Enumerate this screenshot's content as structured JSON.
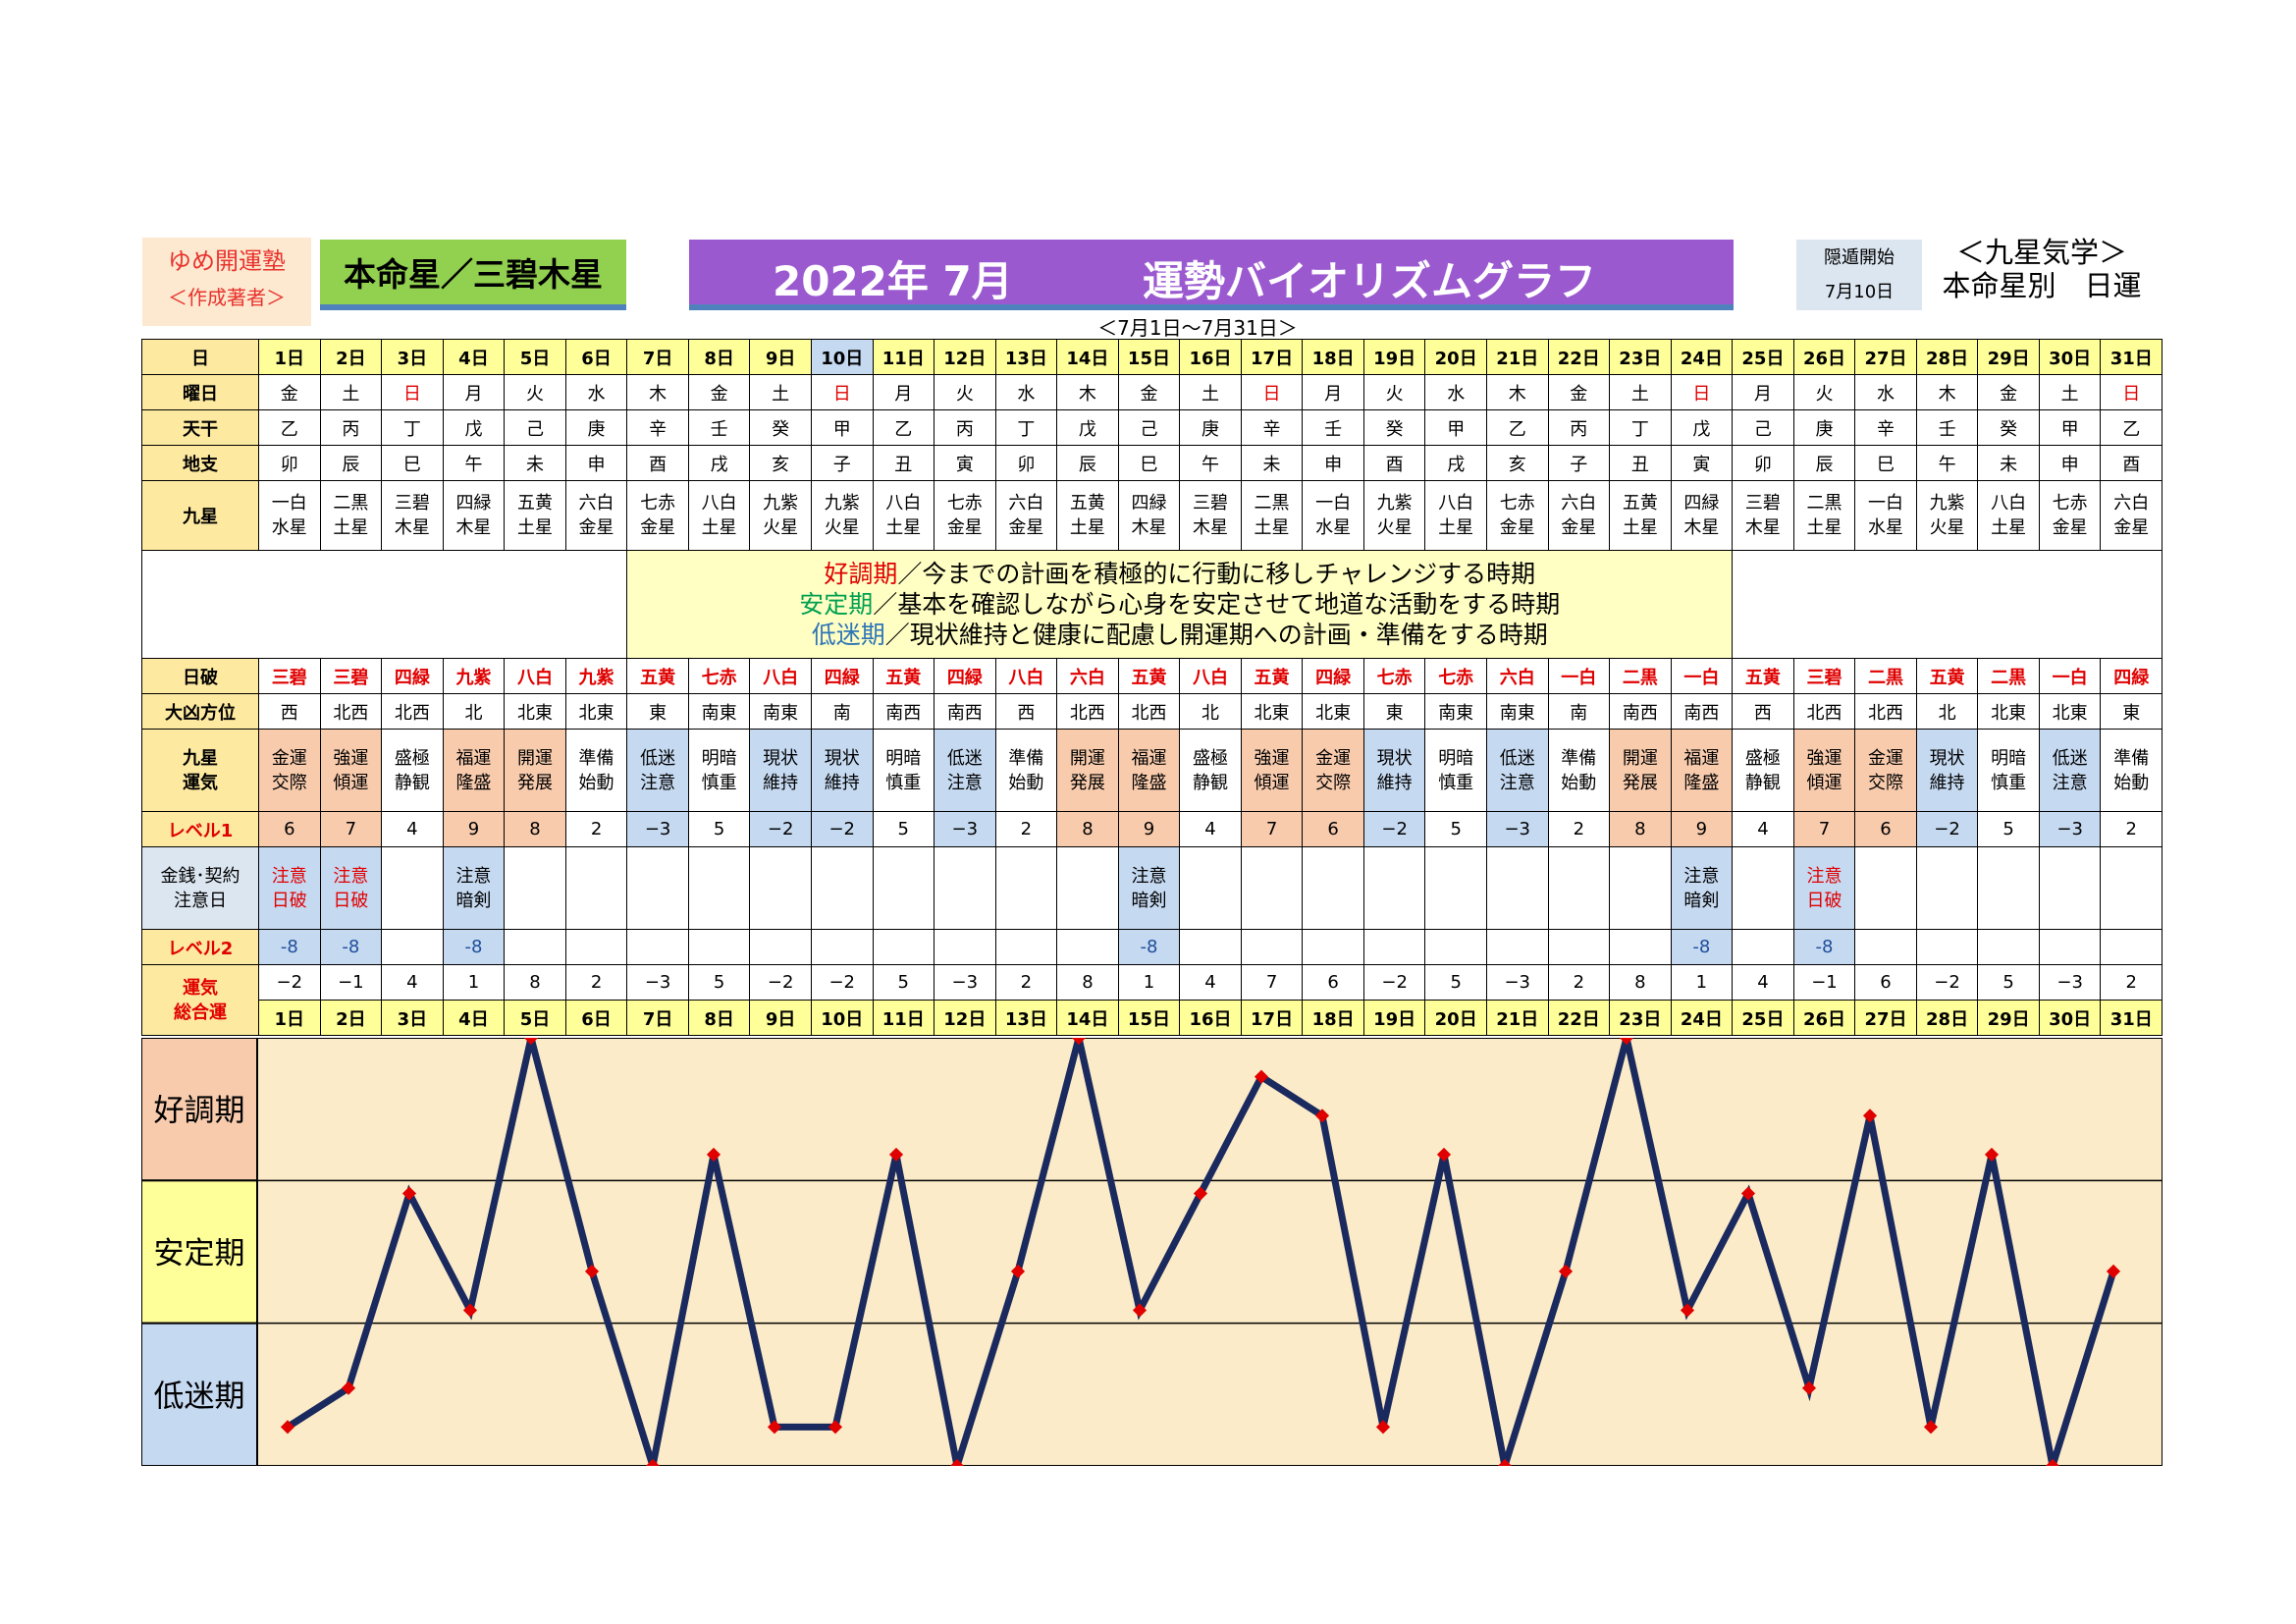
{
  "header": {
    "author_title": "ゆめ開運塾",
    "author_sub": "＜作成著者＞",
    "honmei": "本命星／三碧木星",
    "title_date": "2022年 7月",
    "title_main": "運勢バイオリズムグラフ",
    "hidden_label": "隠遁開始",
    "hidden_date": "7月10日",
    "school_1": "＜九星気学＞",
    "school_2": "本命星別　日運",
    "range": "＜7月1日～7月31日＞"
  },
  "row_labels": {
    "day": "日",
    "weekday": "曜日",
    "stem": "天干",
    "branch": "地支",
    "star": "九星",
    "nichiha": "日破",
    "daikyo": "大凶方位",
    "unki1": "九星",
    "unki2": "運気",
    "level1": "レベル1",
    "money1": "金銭･契約",
    "money2": "注意日",
    "level2": "レベル2",
    "total1": "運気",
    "total2": "総合運"
  },
  "legend": {
    "good_term": "好調期",
    "good_text": "／今までの計画を積極的に行動に移しチャレンジする時期",
    "stable_term": "安定期",
    "stable_text": "／基本を確認しながら心身を安定させて地道な活動をする時期",
    "low_term": "低迷期",
    "low_text": "／現状維持と健康に配慮し開運期への計画・準備をする時期"
  },
  "zones": {
    "good": "好調期",
    "stable": "安定期",
    "low": "低迷期"
  },
  "days": [
    {
      "d": "1日",
      "w": "金",
      "stem": "乙",
      "branch": "卯",
      "s1": "一白",
      "s2": "水星",
      "ha": "三碧",
      "hou": "西",
      "u1": "金運",
      "u2": "交際",
      "lv1": "6",
      "c1": "注意",
      "c2": "日破",
      "lv2": "-8",
      "tot": "−2"
    },
    {
      "d": "2日",
      "w": "土",
      "stem": "丙",
      "branch": "辰",
      "s1": "二黒",
      "s2": "土星",
      "ha": "三碧",
      "hou": "北西",
      "u1": "強運",
      "u2": "傾運",
      "lv1": "7",
      "c1": "注意",
      "c2": "日破",
      "lv2": "-8",
      "tot": "−1"
    },
    {
      "d": "3日",
      "w": "日",
      "stem": "丁",
      "branch": "巳",
      "s1": "三碧",
      "s2": "木星",
      "ha": "四緑",
      "hou": "北西",
      "u1": "盛極",
      "u2": "静観",
      "lv1": "4",
      "c1": "",
      "c2": "",
      "lv2": "",
      "tot": "4"
    },
    {
      "d": "4日",
      "w": "月",
      "stem": "戊",
      "branch": "午",
      "s1": "四緑",
      "s2": "木星",
      "ha": "九紫",
      "hou": "北",
      "u1": "福運",
      "u2": "隆盛",
      "lv1": "9",
      "c1": "注意",
      "c2": "暗剣",
      "lv2": "-8",
      "tot": "1"
    },
    {
      "d": "5日",
      "w": "火",
      "stem": "己",
      "branch": "未",
      "s1": "五黄",
      "s2": "土星",
      "ha": "八白",
      "hou": "北東",
      "u1": "開運",
      "u2": "発展",
      "lv1": "8",
      "c1": "",
      "c2": "",
      "lv2": "",
      "tot": "8"
    },
    {
      "d": "6日",
      "w": "水",
      "stem": "庚",
      "branch": "申",
      "s1": "六白",
      "s2": "金星",
      "ha": "九紫",
      "hou": "北東",
      "u1": "準備",
      "u2": "始動",
      "lv1": "2",
      "c1": "",
      "c2": "",
      "lv2": "",
      "tot": "2"
    },
    {
      "d": "7日",
      "w": "木",
      "stem": "辛",
      "branch": "酉",
      "s1": "七赤",
      "s2": "金星",
      "ha": "五黄",
      "hou": "東",
      "u1": "低迷",
      "u2": "注意",
      "lv1": "−3",
      "c1": "",
      "c2": "",
      "lv2": "",
      "tot": "−3"
    },
    {
      "d": "8日",
      "w": "金",
      "stem": "壬",
      "branch": "戌",
      "s1": "八白",
      "s2": "土星",
      "ha": "七赤",
      "hou": "南東",
      "u1": "明暗",
      "u2": "慎重",
      "lv1": "5",
      "c1": "",
      "c2": "",
      "lv2": "",
      "tot": "5"
    },
    {
      "d": "9日",
      "w": "土",
      "stem": "癸",
      "branch": "亥",
      "s1": "九紫",
      "s2": "火星",
      "ha": "八白",
      "hou": "南東",
      "u1": "現状",
      "u2": "維持",
      "lv1": "−2",
      "c1": "",
      "c2": "",
      "lv2": "",
      "tot": "−2"
    },
    {
      "d": "10日",
      "w": "日",
      "stem": "甲",
      "branch": "子",
      "s1": "九紫",
      "s2": "火星",
      "ha": "四緑",
      "hou": "南",
      "u1": "現状",
      "u2": "維持",
      "lv1": "−2",
      "c1": "",
      "c2": "",
      "lv2": "",
      "tot": "−2"
    },
    {
      "d": "11日",
      "w": "月",
      "stem": "乙",
      "branch": "丑",
      "s1": "八白",
      "s2": "土星",
      "ha": "五黄",
      "hou": "南西",
      "u1": "明暗",
      "u2": "慎重",
      "lv1": "5",
      "c1": "",
      "c2": "",
      "lv2": "",
      "tot": "5"
    },
    {
      "d": "12日",
      "w": "火",
      "stem": "丙",
      "branch": "寅",
      "s1": "七赤",
      "s2": "金星",
      "ha": "四緑",
      "hou": "南西",
      "u1": "低迷",
      "u2": "注意",
      "lv1": "−3",
      "c1": "",
      "c2": "",
      "lv2": "",
      "tot": "−3"
    },
    {
      "d": "13日",
      "w": "水",
      "stem": "丁",
      "branch": "卯",
      "s1": "六白",
      "s2": "金星",
      "ha": "八白",
      "hou": "西",
      "u1": "準備",
      "u2": "始動",
      "lv1": "2",
      "c1": "",
      "c2": "",
      "lv2": "",
      "tot": "2"
    },
    {
      "d": "14日",
      "w": "木",
      "stem": "戊",
      "branch": "辰",
      "s1": "五黄",
      "s2": "土星",
      "ha": "六白",
      "hou": "北西",
      "u1": "開運",
      "u2": "発展",
      "lv1": "8",
      "c1": "",
      "c2": "",
      "lv2": "",
      "tot": "8"
    },
    {
      "d": "15日",
      "w": "金",
      "stem": "己",
      "branch": "巳",
      "s1": "四緑",
      "s2": "木星",
      "ha": "五黄",
      "hou": "北西",
      "u1": "福運",
      "u2": "隆盛",
      "lv1": "9",
      "c1": "注意",
      "c2": "暗剣",
      "lv2": "-8",
      "tot": "1"
    },
    {
      "d": "16日",
      "w": "土",
      "stem": "庚",
      "branch": "午",
      "s1": "三碧",
      "s2": "木星",
      "ha": "八白",
      "hou": "北",
      "u1": "盛極",
      "u2": "静観",
      "lv1": "4",
      "c1": "",
      "c2": "",
      "lv2": "",
      "tot": "4"
    },
    {
      "d": "17日",
      "w": "日",
      "stem": "辛",
      "branch": "未",
      "s1": "二黒",
      "s2": "土星",
      "ha": "五黄",
      "hou": "北東",
      "u1": "強運",
      "u2": "傾運",
      "lv1": "7",
      "c1": "",
      "c2": "",
      "lv2": "",
      "tot": "7"
    },
    {
      "d": "18日",
      "w": "月",
      "stem": "壬",
      "branch": "申",
      "s1": "一白",
      "s2": "水星",
      "ha": "四緑",
      "hou": "北東",
      "u1": "金運",
      "u2": "交際",
      "lv1": "6",
      "c1": "",
      "c2": "",
      "lv2": "",
      "tot": "6"
    },
    {
      "d": "19日",
      "w": "火",
      "stem": "癸",
      "branch": "酉",
      "s1": "九紫",
      "s2": "火星",
      "ha": "七赤",
      "hou": "東",
      "u1": "現状",
      "u2": "維持",
      "lv1": "−2",
      "c1": "",
      "c2": "",
      "lv2": "",
      "tot": "−2"
    },
    {
      "d": "20日",
      "w": "水",
      "stem": "甲",
      "branch": "戌",
      "s1": "八白",
      "s2": "土星",
      "ha": "七赤",
      "hou": "南東",
      "u1": "明暗",
      "u2": "慎重",
      "lv1": "5",
      "c1": "",
      "c2": "",
      "lv2": "",
      "tot": "5"
    },
    {
      "d": "21日",
      "w": "木",
      "stem": "乙",
      "branch": "亥",
      "s1": "七赤",
      "s2": "金星",
      "ha": "六白",
      "hou": "南東",
      "u1": "低迷",
      "u2": "注意",
      "lv1": "−3",
      "c1": "",
      "c2": "",
      "lv2": "",
      "tot": "−3"
    },
    {
      "d": "22日",
      "w": "金",
      "stem": "丙",
      "branch": "子",
      "s1": "六白",
      "s2": "金星",
      "ha": "一白",
      "hou": "南",
      "u1": "準備",
      "u2": "始動",
      "lv1": "2",
      "c1": "",
      "c2": "",
      "lv2": "",
      "tot": "2"
    },
    {
      "d": "23日",
      "w": "土",
      "stem": "丁",
      "branch": "丑",
      "s1": "五黄",
      "s2": "土星",
      "ha": "二黒",
      "hou": "南西",
      "u1": "開運",
      "u2": "発展",
      "lv1": "8",
      "c1": "",
      "c2": "",
      "lv2": "",
      "tot": "8"
    },
    {
      "d": "24日",
      "w": "日",
      "stem": "戊",
      "branch": "寅",
      "s1": "四緑",
      "s2": "木星",
      "ha": "一白",
      "hou": "南西",
      "u1": "福運",
      "u2": "隆盛",
      "lv1": "9",
      "c1": "注意",
      "c2": "暗剣",
      "lv2": "-8",
      "tot": "1"
    },
    {
      "d": "25日",
      "w": "月",
      "stem": "己",
      "branch": "卯",
      "s1": "三碧",
      "s2": "木星",
      "ha": "五黄",
      "hou": "西",
      "u1": "盛極",
      "u2": "静観",
      "lv1": "4",
      "c1": "",
      "c2": "",
      "lv2": "",
      "tot": "4"
    },
    {
      "d": "26日",
      "w": "火",
      "stem": "庚",
      "branch": "辰",
      "s1": "二黒",
      "s2": "土星",
      "ha": "三碧",
      "hou": "北西",
      "u1": "強運",
      "u2": "傾運",
      "lv1": "7",
      "c1": "注意",
      "c2": "日破",
      "lv2": "-8",
      "tot": "−1"
    },
    {
      "d": "27日",
      "w": "水",
      "stem": "辛",
      "branch": "巳",
      "s1": "一白",
      "s2": "水星",
      "ha": "二黒",
      "hou": "北西",
      "u1": "金運",
      "u2": "交際",
      "lv1": "6",
      "c1": "",
      "c2": "",
      "lv2": "",
      "tot": "6"
    },
    {
      "d": "28日",
      "w": "木",
      "stem": "壬",
      "branch": "午",
      "s1": "九紫",
      "s2": "火星",
      "ha": "五黄",
      "hou": "北",
      "u1": "現状",
      "u2": "維持",
      "lv1": "−2",
      "c1": "",
      "c2": "",
      "lv2": "",
      "tot": "−2"
    },
    {
      "d": "29日",
      "w": "金",
      "stem": "癸",
      "branch": "未",
      "s1": "八白",
      "s2": "土星",
      "ha": "二黒",
      "hou": "北東",
      "u1": "明暗",
      "u2": "慎重",
      "lv1": "5",
      "c1": "",
      "c2": "",
      "lv2": "",
      "tot": "5"
    },
    {
      "d": "30日",
      "w": "土",
      "stem": "甲",
      "branch": "申",
      "s1": "七赤",
      "s2": "金星",
      "ha": "一白",
      "hou": "北東",
      "u1": "低迷",
      "u2": "注意",
      "lv1": "−3",
      "c1": "",
      "c2": "",
      "lv2": "",
      "tot": "−3"
    },
    {
      "d": "31日",
      "w": "日",
      "stem": "乙",
      "branch": "酉",
      "s1": "六白",
      "s2": "金星",
      "ha": "四緑",
      "hou": "東",
      "u1": "準備",
      "u2": "始動",
      "lv1": "2",
      "c1": "",
      "c2": "",
      "lv2": "",
      "tot": "2"
    }
  ],
  "chart_data": {
    "type": "line",
    "categories": [
      "1日",
      "2日",
      "3日",
      "4日",
      "5日",
      "6日",
      "7日",
      "8日",
      "9日",
      "10日",
      "11日",
      "12日",
      "13日",
      "14日",
      "15日",
      "16日",
      "17日",
      "18日",
      "19日",
      "20日",
      "21日",
      "22日",
      "23日",
      "24日",
      "25日",
      "26日",
      "27日",
      "28日",
      "29日",
      "30日",
      "31日"
    ],
    "values": [
      -2,
      -1,
      4,
      1,
      8,
      2,
      -3,
      5,
      -2,
      -2,
      5,
      -3,
      2,
      8,
      1,
      4,
      7,
      6,
      -2,
      5,
      -3,
      2,
      8,
      1,
      4,
      -1,
      6,
      -2,
      5,
      -3,
      2
    ],
    "ylim": [
      -3,
      8
    ],
    "zones": [
      "好調期",
      "安定期",
      "低迷期"
    ],
    "line_color": "#1a2a5e",
    "marker_color": "#e00000",
    "background": "#fcebc8",
    "grid": true
  },
  "colors": {
    "sunday": "#e00000",
    "good": "#f8cbad",
    "stable": "#ffff99",
    "low": "#c5d9f1"
  }
}
